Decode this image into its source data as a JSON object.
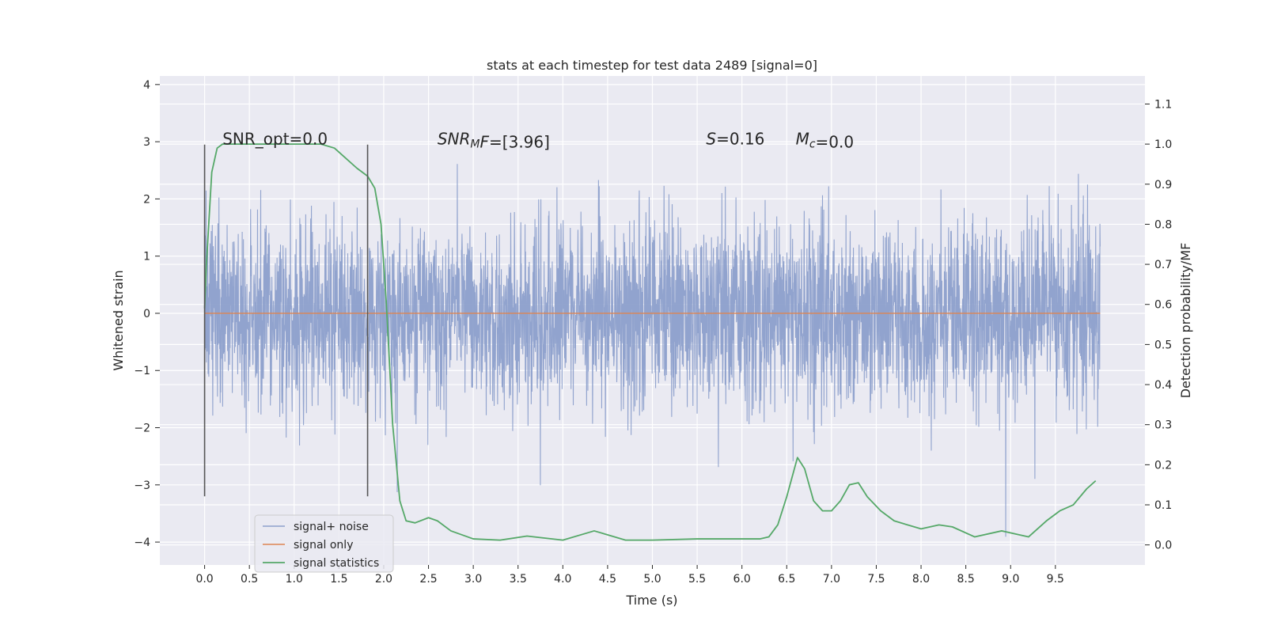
{
  "chart_data": {
    "type": "line",
    "title": "stats at each timestep for test data 2489 [signal=0]",
    "xlabel": "Time (s)",
    "ylabel": "Whitened strain",
    "ylabel_right": "Detection probability/MF",
    "xlim": [
      -0.5,
      10.5
    ],
    "ylim": [
      -4.4,
      4.15
    ],
    "ylim_right": [
      -0.05,
      1.17
    ],
    "x_ticks": [
      0.0,
      0.5,
      1.0,
      1.5,
      2.0,
      2.5,
      3.0,
      3.5,
      4.0,
      4.5,
      5.0,
      5.5,
      6.0,
      6.5,
      7.0,
      7.5,
      8.0,
      8.5,
      9.0,
      9.5
    ],
    "x_tick_labels": [
      "0.0",
      "0.5",
      "1.0",
      "1.5",
      "2.0",
      "2.5",
      "3.0",
      "3.5",
      "4.0",
      "4.5",
      "5.0",
      "5.5",
      "6.0",
      "6.5",
      "7.0",
      "7.5",
      "8.0",
      "8.5",
      "9.0",
      "9.5"
    ],
    "y_ticks": [
      -4,
      -3,
      -2,
      -1,
      0,
      1,
      2,
      3,
      4
    ],
    "y_tick_labels": [
      "−4",
      "−3",
      "−2",
      "−1",
      "0",
      "1",
      "2",
      "3",
      "4"
    ],
    "y_right_ticks": [
      0.0,
      0.1,
      0.2,
      0.3,
      0.4,
      0.5,
      0.6,
      0.7,
      0.8,
      0.9,
      1.0,
      1.1
    ],
    "y_right_tick_labels": [
      "0.0",
      "0.1",
      "0.2",
      "0.3",
      "0.4",
      "0.5",
      "0.6",
      "0.7",
      "0.8",
      "0.9",
      "1.0",
      "1.1"
    ],
    "grid": true,
    "legend_position": "lower-left",
    "annotations": [
      {
        "x": 0.2,
        "y": 2.95,
        "parts": [
          {
            "t": "SNR_opt=0.0",
            "i": false
          }
        ]
      },
      {
        "x": 2.6,
        "y": 2.95,
        "parts": [
          {
            "t": "SNR",
            "i": true
          },
          {
            "t": "M",
            "i": true,
            "sub": true
          },
          {
            "t": "F",
            "i": true
          },
          {
            "t": "=[3.96]",
            "i": false
          }
        ]
      },
      {
        "x": 5.6,
        "y": 2.95,
        "parts": [
          {
            "t": "S",
            "i": true
          },
          {
            "t": "=0.16",
            "i": false
          }
        ]
      },
      {
        "x": 6.6,
        "y": 2.95,
        "parts": [
          {
            "t": "M",
            "i": true
          },
          {
            "t": "c",
            "i": true,
            "sub": true
          },
          {
            "t": "=0.0",
            "i": false
          }
        ]
      }
    ],
    "vertical_markers": [
      {
        "x": 0.0,
        "y0": -3.2,
        "y1": 2.95
      },
      {
        "x": 1.82,
        "y0": -3.2,
        "y1": 2.95
      }
    ],
    "series": [
      {
        "name": "signal+ noise",
        "color": "#8c9fcb",
        "axis": "left",
        "kind": "noise",
        "x_range": [
          0.0,
          10.0
        ],
        "std": 0.8,
        "clip": [
          -4.05,
          3.72
        ]
      },
      {
        "name": "signal only",
        "color": "#dd8452",
        "axis": "left",
        "x": [
          0.0,
          10.0
        ],
        "y": [
          0.0,
          0.0
        ]
      },
      {
        "name": "signal statistics",
        "color": "#55a868",
        "axis": "right",
        "x": [
          0.0,
          0.02,
          0.08,
          0.14,
          0.2,
          0.5,
          1.0,
          1.3,
          1.45,
          1.55,
          1.7,
          1.82,
          1.9,
          1.97,
          2.03,
          2.1,
          2.18,
          2.25,
          2.35,
          2.5,
          2.6,
          2.75,
          3.0,
          3.3,
          3.6,
          4.0,
          4.35,
          4.7,
          5.0,
          5.5,
          6.0,
          6.2,
          6.3,
          6.4,
          6.5,
          6.62,
          6.7,
          6.8,
          6.9,
          7.0,
          7.1,
          7.2,
          7.3,
          7.4,
          7.55,
          7.7,
          8.0,
          8.2,
          8.35,
          8.6,
          8.9,
          9.1,
          9.2,
          9.4,
          9.55,
          9.7,
          9.85,
          9.95
        ],
        "y": [
          0.59,
          0.7,
          0.93,
          0.99,
          1.0,
          1.0,
          1.0,
          1.0,
          0.99,
          0.97,
          0.94,
          0.92,
          0.89,
          0.8,
          0.6,
          0.3,
          0.11,
          0.06,
          0.055,
          0.068,
          0.06,
          0.035,
          0.015,
          0.012,
          0.022,
          0.012,
          0.035,
          0.012,
          0.012,
          0.015,
          0.015,
          0.015,
          0.02,
          0.05,
          0.12,
          0.218,
          0.19,
          0.11,
          0.085,
          0.085,
          0.11,
          0.15,
          0.155,
          0.12,
          0.085,
          0.06,
          0.04,
          0.05,
          0.045,
          0.02,
          0.035,
          0.025,
          0.02,
          0.06,
          0.085,
          0.1,
          0.14,
          0.16
        ]
      }
    ]
  }
}
